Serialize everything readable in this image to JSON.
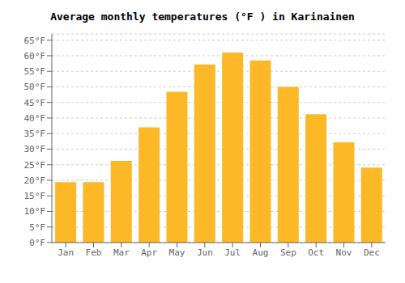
{
  "chart_data": {
    "type": "bar",
    "title": "Average monthly temperatures (°F ) in Karinainen",
    "categories": [
      "Jan",
      "Feb",
      "Mar",
      "Apr",
      "May",
      "Jun",
      "Jul",
      "Aug",
      "Sep",
      "Oct",
      "Nov",
      "Dec"
    ],
    "values": [
      19.4,
      19.4,
      26.2,
      37.0,
      48.4,
      57.2,
      61.0,
      58.5,
      50.0,
      41.2,
      32.2,
      24.1
    ],
    "color": "#FDB827",
    "ylim": [
      0,
      67
    ],
    "yticks": [
      {
        "value": 0,
        "label": "0°F"
      },
      {
        "value": 5,
        "label": "5°F"
      },
      {
        "value": 10,
        "label": "10°F"
      },
      {
        "value": 15,
        "label": "15°F"
      },
      {
        "value": 20,
        "label": "20°F"
      },
      {
        "value": 25,
        "label": "25°F"
      },
      {
        "value": 30,
        "label": "30°F"
      },
      {
        "value": 35,
        "label": "35°F"
      },
      {
        "value": 40,
        "label": "40°F"
      },
      {
        "value": 45,
        "label": "45°F"
      },
      {
        "value": 50,
        "label": "50°F"
      },
      {
        "value": 55,
        "label": "55°F"
      },
      {
        "value": 60,
        "label": "60°F"
      },
      {
        "value": 65,
        "label": "65°F"
      }
    ],
    "grid": true
  }
}
